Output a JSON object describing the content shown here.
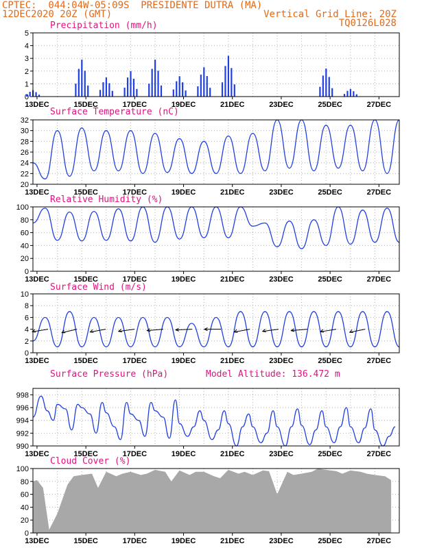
{
  "header": {
    "line1": "CPTEC:  044:04W-05:09S  PRESIDENTE DUTRA (MA)",
    "line2_left": "12DEC2020 20Z (GMT)",
    "line2_right": "Vertical Grid Line: 20Z",
    "line3_right": "TQ0126L028"
  },
  "colors": {
    "header": "#e06a1a",
    "title": "#e0117f",
    "line": "#1f3fe0",
    "cloud": "#a8a8a8",
    "grid": "#b0b0b0"
  },
  "x_ticks": [
    "13DEC",
    "15DEC",
    "17DEC",
    "19DEC",
    "21DEC",
    "23DEC",
    "25DEC",
    "27DEC"
  ],
  "model_altitude": "Model Altitude: 136.472 m",
  "chart_data": [
    {
      "type": "bar",
      "title": "Precipitation (mm/h)",
      "ylim": [
        0,
        5
      ],
      "yticks": [
        "0",
        "1",
        "2",
        "3",
        "4",
        "5"
      ],
      "x": [
        "12DEC 20Z",
        "13DEC 20Z",
        "14DEC 20Z",
        "15DEC 20Z",
        "16DEC 20Z",
        "17DEC 20Z",
        "18DEC 20Z",
        "19DEC 20Z",
        "20DEC 20Z",
        "21DEC 20Z",
        "22DEC 20Z",
        "23DEC 20Z",
        "24DEC 20Z",
        "25DEC 20Z",
        "26DEC 20Z"
      ],
      "values": [
        0.5,
        0,
        2.9,
        1.5,
        2.0,
        2.9,
        1.6,
        2.3,
        3.2,
        0,
        0,
        0,
        2.2,
        0.6,
        0
      ],
      "grid": true
    },
    {
      "type": "line",
      "title": "Surface Temperature (nC)",
      "ylim": [
        20,
        32
      ],
      "yticks": [
        "20",
        "22",
        "24",
        "26",
        "28",
        "30",
        "32"
      ],
      "series": [
        {
          "x": [
            "12DEC 20Z",
            "13DEC 08Z",
            "13DEC 20Z",
            "14DEC 08Z",
            "14DEC 20Z",
            "15DEC 08Z",
            "15DEC 20Z",
            "16DEC 08Z",
            "16DEC 20Z",
            "17DEC 08Z",
            "17DEC 20Z",
            "18DEC 08Z",
            "18DEC 20Z",
            "19DEC 08Z",
            "19DEC 20Z",
            "20DEC 08Z",
            "20DEC 20Z",
            "21DEC 08Z",
            "21DEC 20Z",
            "22DEC 08Z",
            "22DEC 20Z",
            "23DEC 08Z",
            "23DEC 20Z",
            "24DEC 08Z",
            "24DEC 20Z",
            "25DEC 08Z",
            "25DEC 20Z",
            "26DEC 08Z",
            "26DEC 20Z",
            "27DEC 08Z",
            "27DEC 20Z"
          ],
          "values": [
            24,
            21,
            30,
            21.5,
            30.5,
            22.5,
            30,
            22.5,
            30,
            22,
            29.5,
            22.2,
            28.5,
            22,
            28,
            22,
            29,
            22,
            29.5,
            22.5,
            32,
            23,
            32,
            22.5,
            31,
            23,
            31,
            22.5,
            32,
            22,
            32
          ]
        }
      ],
      "grid": true
    },
    {
      "type": "line",
      "title": "Relative Humidity (%)",
      "ylim": [
        0,
        100
      ],
      "yticks": [
        "0",
        "20",
        "40",
        "60",
        "80",
        "100"
      ],
      "series": [
        {
          "x": [
            "12DEC 20Z",
            "13DEC 08Z",
            "13DEC 20Z",
            "14DEC 08Z",
            "14DEC 20Z",
            "15DEC 08Z",
            "15DEC 20Z",
            "16DEC 08Z",
            "16DEC 20Z",
            "17DEC 08Z",
            "17DEC 20Z",
            "18DEC 08Z",
            "18DEC 20Z",
            "19DEC 08Z",
            "19DEC 20Z",
            "20DEC 08Z",
            "20DEC 20Z",
            "21DEC 08Z",
            "21DEC 20Z",
            "22DEC 08Z",
            "22DEC 20Z",
            "23DEC 08Z",
            "23DEC 20Z",
            "24DEC 08Z",
            "24DEC 20Z",
            "25DEC 08Z",
            "25DEC 20Z",
            "26DEC 08Z",
            "26DEC 20Z",
            "27DEC 08Z",
            "27DEC 20Z"
          ],
          "values": [
            75,
            98,
            48,
            92,
            47,
            93,
            48,
            97,
            47,
            100,
            45,
            100,
            50,
            100,
            52,
            100,
            52,
            100,
            70,
            75,
            38,
            78,
            35,
            80,
            40,
            100,
            42,
            95,
            45,
            98,
            45
          ]
        }
      ],
      "grid": true
    },
    {
      "type": "line",
      "title": "Surface Wind (m/s)",
      "ylim": [
        0,
        10
      ],
      "yticks": [
        "0",
        "2",
        "4",
        "6",
        "8",
        "10"
      ],
      "series": [
        {
          "x": [
            "12DEC 20Z",
            "13DEC 08Z",
            "13DEC 20Z",
            "14DEC 08Z",
            "14DEC 20Z",
            "15DEC 08Z",
            "15DEC 20Z",
            "16DEC 08Z",
            "16DEC 20Z",
            "17DEC 08Z",
            "17DEC 20Z",
            "18DEC 08Z",
            "18DEC 20Z",
            "19DEC 08Z",
            "19DEC 20Z",
            "20DEC 08Z",
            "20DEC 20Z",
            "21DEC 08Z",
            "21DEC 20Z",
            "22DEC 08Z",
            "22DEC 20Z",
            "23DEC 08Z",
            "23DEC 20Z",
            "24DEC 08Z",
            "24DEC 20Z",
            "25DEC 08Z",
            "25DEC 20Z",
            "26DEC 08Z",
            "26DEC 20Z",
            "27DEC 08Z",
            "27DEC 20Z"
          ],
          "values": [
            2,
            6,
            1,
            7,
            1,
            6,
            1,
            6,
            1,
            6,
            1,
            6,
            1,
            5,
            1,
            6,
            1,
            7,
            1,
            7,
            1,
            7,
            1,
            7,
            1,
            7,
            1,
            7,
            1,
            7,
            1
          ]
        }
      ],
      "wind_arrows": true,
      "grid": true
    },
    {
      "type": "line",
      "title": "Surface Pressure (hPa)",
      "ylim": [
        990,
        999
      ],
      "yticks": [
        "990",
        "992",
        "994",
        "996",
        "998"
      ],
      "series": [
        {
          "x": [
            "12DEC 20Z",
            "13DEC 04Z",
            "13DEC 10Z",
            "13DEC 16Z",
            "13DEC 20Z",
            "14DEC 04Z",
            "14DEC 10Z",
            "14DEC 16Z",
            "14DEC 20Z",
            "15DEC 04Z",
            "15DEC 10Z",
            "15DEC 16Z",
            "15DEC 20Z",
            "16DEC 04Z",
            "16DEC 10Z",
            "16DEC 16Z",
            "16DEC 20Z",
            "17DEC 04Z",
            "17DEC 10Z",
            "17DEC 16Z",
            "17DEC 20Z",
            "18DEC 04Z",
            "18DEC 10Z",
            "18DEC 16Z",
            "18DEC 20Z",
            "19DEC 04Z",
            "19DEC 10Z",
            "19DEC 16Z",
            "19DEC 20Z",
            "20DEC 04Z",
            "20DEC 10Z",
            "20DEC 16Z",
            "20DEC 20Z",
            "21DEC 04Z",
            "21DEC 10Z",
            "21DEC 16Z",
            "21DEC 20Z",
            "22DEC 04Z",
            "22DEC 10Z",
            "22DEC 16Z",
            "22DEC 20Z",
            "23DEC 04Z",
            "23DEC 10Z",
            "23DEC 16Z",
            "23DEC 20Z",
            "24DEC 04Z",
            "24DEC 10Z",
            "24DEC 16Z",
            "24DEC 20Z",
            "25DEC 04Z",
            "25DEC 10Z",
            "25DEC 16Z",
            "25DEC 20Z",
            "26DEC 04Z",
            "26DEC 10Z",
            "26DEC 16Z",
            "26DEC 20Z",
            "27DEC 04Z",
            "27DEC 10Z",
            "27DEC 16Z"
          ],
          "values": [
            994.5,
            997.8,
            995.5,
            994,
            996.5,
            995.8,
            992.5,
            996.5,
            996,
            995,
            992,
            996.8,
            995.2,
            993,
            991,
            996.8,
            995,
            994,
            991.5,
            996.8,
            995.5,
            994.5,
            991.2,
            997.2,
            993.5,
            991.5,
            993,
            995.5,
            994,
            991,
            992.5,
            995.5,
            993.5,
            990,
            993,
            995,
            993,
            990.5,
            992,
            995.5,
            993,
            990,
            993,
            995.8,
            993.2,
            990.2,
            992.5,
            995.5,
            993,
            990.5,
            993,
            996,
            993,
            990.5,
            992.8,
            995.8,
            992.5,
            990,
            991.5,
            993
          ]
        }
      ],
      "grid": true
    },
    {
      "type": "area",
      "title": "Cloud Cover (%)",
      "ylim": [
        0,
        100
      ],
      "yticks": [
        "0",
        "20",
        "40",
        "60",
        "80",
        "100"
      ],
      "series": [
        {
          "x": [
            "12DEC 20Z",
            "13DEC 00Z",
            "13DEC 06Z",
            "13DEC 12Z",
            "13DEC 20Z",
            "14DEC 06Z",
            "14DEC 12Z",
            "14DEC 20Z",
            "15DEC 06Z",
            "15DEC 12Z",
            "15DEC 20Z",
            "16DEC 06Z",
            "16DEC 12Z",
            "16DEC 20Z",
            "17DEC 06Z",
            "17DEC 12Z",
            "17DEC 20Z",
            "18DEC 06Z",
            "18DEC 12Z",
            "18DEC 20Z",
            "19DEC 06Z",
            "19DEC 12Z",
            "19DEC 20Z",
            "20DEC 06Z",
            "20DEC 12Z",
            "20DEC 20Z",
            "21DEC 06Z",
            "21DEC 12Z",
            "21DEC 20Z",
            "22DEC 06Z",
            "22DEC 12Z",
            "22DEC 20Z",
            "23DEC 06Z",
            "23DEC 12Z",
            "23DEC 20Z",
            "24DEC 06Z",
            "24DEC 12Z",
            "24DEC 20Z",
            "25DEC 06Z",
            "25DEC 12Z",
            "25DEC 20Z",
            "26DEC 06Z",
            "26DEC 12Z",
            "26DEC 20Z",
            "27DEC 06Z",
            "27DEC 12Z"
          ],
          "values": [
            80,
            82,
            70,
            5,
            30,
            75,
            88,
            90,
            92,
            70,
            95,
            88,
            92,
            95,
            90,
            92,
            98,
            95,
            80,
            97,
            90,
            95,
            95,
            88,
            85,
            98,
            92,
            95,
            90,
            97,
            96,
            60,
            95,
            90,
            92,
            95,
            100,
            98,
            96,
            92,
            97,
            95,
            92,
            90,
            88,
            82
          ]
        }
      ],
      "grid": true
    }
  ]
}
